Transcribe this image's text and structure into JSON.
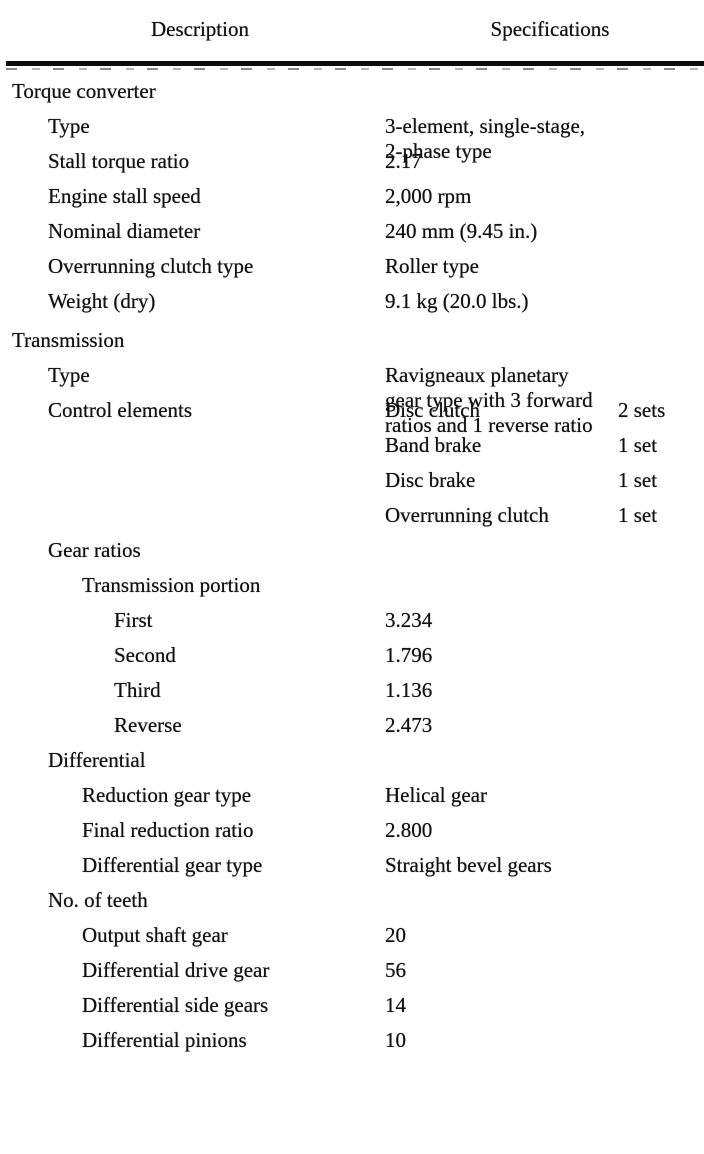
{
  "document": {
    "header": {
      "description_col": "Description",
      "specifications_col": "Specifications"
    },
    "rows": [
      {
        "indent": 0,
        "label": "Torque converter",
        "spec": "",
        "qty": ""
      },
      {
        "indent": 1,
        "label": "Type",
        "spec": "3-element, single-stage,\n2-phase type",
        "qty": ""
      },
      {
        "indent": 1,
        "label": "Stall torque ratio",
        "spec": "2.17",
        "qty": ""
      },
      {
        "indent": 1,
        "label": "Engine stall speed",
        "spec": "2,000 rpm",
        "qty": ""
      },
      {
        "indent": 1,
        "label": "Nominal diameter",
        "spec": "240 mm (9.45 in.)",
        "qty": ""
      },
      {
        "indent": 1,
        "label": "Overrunning clutch type",
        "spec": "Roller type",
        "qty": ""
      },
      {
        "indent": 1,
        "label": "Weight (dry)",
        "spec": "9.1 kg (20.0 lbs.)",
        "qty": ""
      },
      {
        "indent": 0,
        "label": "Transmission",
        "spec": "",
        "qty": ""
      },
      {
        "indent": 1,
        "label": "Type",
        "spec": "Ravigneaux planetary\ngear type with 3 forward\nratios and 1 reverse ratio",
        "qty": ""
      },
      {
        "indent": 1,
        "label": "Control elements",
        "spec": "Disc clutch",
        "qty": "2 sets"
      },
      {
        "indent": 1,
        "label": "",
        "spec": "Band brake",
        "qty": "1 set"
      },
      {
        "indent": 1,
        "label": "",
        "spec": "Disc brake",
        "qty": "1 set"
      },
      {
        "indent": 1,
        "label": "",
        "spec": "Overrunning clutch",
        "qty": "1 set"
      },
      {
        "indent": 1,
        "label": "Gear ratios",
        "spec": "",
        "qty": ""
      },
      {
        "indent": 2,
        "label": "Transmission portion",
        "spec": "",
        "qty": ""
      },
      {
        "indent": 3,
        "label": "First",
        "spec": "3.234",
        "qty": ""
      },
      {
        "indent": 3,
        "label": "Second",
        "spec": "1.796",
        "qty": ""
      },
      {
        "indent": 3,
        "label": "Third",
        "spec": "1.136",
        "qty": ""
      },
      {
        "indent": 3,
        "label": "Reverse",
        "spec": "2.473",
        "qty": ""
      },
      {
        "indent": 1,
        "label": "Differential",
        "spec": "",
        "qty": ""
      },
      {
        "indent": 2,
        "label": "Reduction gear type",
        "spec": "Helical gear",
        "qty": ""
      },
      {
        "indent": 2,
        "label": "Final reduction ratio",
        "spec": "2.800",
        "qty": ""
      },
      {
        "indent": 2,
        "label": "Differential gear type",
        "spec": "Straight bevel gears",
        "qty": ""
      },
      {
        "indent": 1,
        "label": "No. of teeth",
        "spec": "",
        "qty": ""
      },
      {
        "indent": 2,
        "label": "Output shaft gear",
        "spec": "20",
        "qty": ""
      },
      {
        "indent": 2,
        "label": "Differential drive gear",
        "spec": "56",
        "qty": ""
      },
      {
        "indent": 2,
        "label": "Differential side gears",
        "spec": "14",
        "qty": ""
      },
      {
        "indent": 2,
        "label": "Differential pinions",
        "spec": "10",
        "qty": ""
      }
    ]
  }
}
